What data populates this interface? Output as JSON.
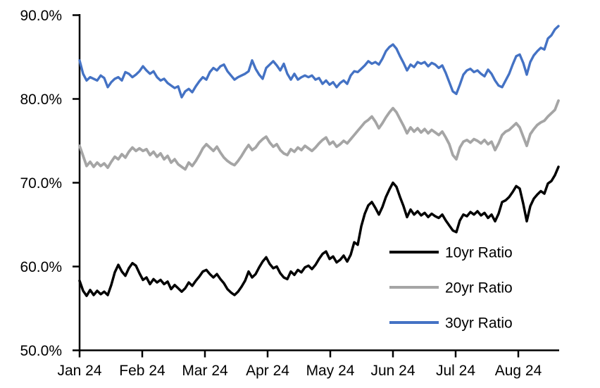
{
  "chart_data": {
    "type": "line",
    "title": "",
    "xlabel": "",
    "ylabel": "",
    "grid": false,
    "legend_position": "inside-lower-right",
    "axis_color": "#000000",
    "ylim": [
      50,
      90
    ],
    "y_tick_step": 10,
    "y_tick_labels": [
      "50.0%",
      "60.0%",
      "70.0%",
      "80.0%",
      "90.0%"
    ],
    "x_tick_labels": [
      "Jan 24",
      "Feb 24",
      "Mar 24",
      "Apr 24",
      "May 24",
      "Jun 24",
      "Jul 24",
      "Aug 24"
    ],
    "series": [
      {
        "name": "10yr Ratio",
        "color": "#000000",
        "values": [
          58.3,
          57.1,
          56.5,
          57.2,
          56.6,
          57.1,
          56.7,
          57.0,
          56.6,
          57.8,
          59.3,
          60.2,
          59.4,
          58.9,
          59.8,
          60.4,
          60.1,
          59.2,
          58.4,
          58.7,
          57.9,
          58.5,
          58.1,
          58.4,
          57.9,
          58.2,
          57.3,
          57.8,
          57.4,
          57.0,
          57.4,
          58.1,
          57.7,
          58.3,
          58.8,
          59.4,
          59.6,
          59.1,
          58.7,
          59.1,
          58.5,
          58.0,
          57.3,
          56.9,
          56.6,
          57.0,
          57.6,
          58.3,
          59.4,
          58.7,
          59.1,
          59.9,
          60.6,
          61.1,
          60.3,
          59.8,
          60.0,
          59.2,
          58.7,
          58.5,
          59.4,
          59.0,
          59.6,
          59.3,
          59.9,
          60.1,
          59.7,
          60.2,
          60.9,
          61.5,
          61.8,
          60.9,
          61.2,
          60.5,
          60.8,
          61.3,
          60.6,
          61.4,
          62.9,
          62.6,
          64.8,
          66.3,
          67.3,
          67.7,
          67.0,
          66.2,
          67.1,
          68.3,
          69.2,
          70.0,
          69.5,
          68.3,
          67.2,
          65.9,
          66.8,
          66.2,
          66.6,
          66.1,
          66.4,
          65.9,
          66.3,
          66.0,
          65.8,
          66.2,
          65.5,
          64.9,
          64.3,
          64.1,
          65.5,
          66.2,
          66.0,
          66.5,
          66.2,
          66.6,
          66.1,
          66.4,
          65.8,
          66.2,
          65.4,
          66.3,
          67.7,
          67.9,
          68.3,
          68.9,
          69.6,
          69.3,
          67.5,
          65.4,
          67.2,
          68.1,
          68.6,
          69.0,
          68.7,
          69.9,
          70.2,
          70.9,
          71.9
        ]
      },
      {
        "name": "20yr Ratio",
        "color": "#A5A5A5",
        "values": [
          74.4,
          73.2,
          72.0,
          72.5,
          71.9,
          72.4,
          72.0,
          72.3,
          71.8,
          72.5,
          73.1,
          72.8,
          73.4,
          73.0,
          73.7,
          74.2,
          73.8,
          74.1,
          73.8,
          74.0,
          73.3,
          73.7,
          73.1,
          73.5,
          72.8,
          73.2,
          72.4,
          72.8,
          72.2,
          71.9,
          71.6,
          72.4,
          72.0,
          72.6,
          73.3,
          74.1,
          74.6,
          74.2,
          73.8,
          74.3,
          73.6,
          73.0,
          72.6,
          72.3,
          72.1,
          72.6,
          73.2,
          73.9,
          74.5,
          73.9,
          74.2,
          74.8,
          75.2,
          75.5,
          74.8,
          74.3,
          74.6,
          73.9,
          73.5,
          73.3,
          74.0,
          73.7,
          74.2,
          73.9,
          74.4,
          74.1,
          73.8,
          74.2,
          74.7,
          75.1,
          75.4,
          74.6,
          74.9,
          74.3,
          74.6,
          75.0,
          74.7,
          75.2,
          75.7,
          76.2,
          76.7,
          77.2,
          77.5,
          77.9,
          77.3,
          76.5,
          77.1,
          77.8,
          78.4,
          78.9,
          78.4,
          77.6,
          76.8,
          75.9,
          76.6,
          76.1,
          76.5,
          76.0,
          76.4,
          75.9,
          76.3,
          76.0,
          75.7,
          76.1,
          75.4,
          74.6,
          73.3,
          72.8,
          74.2,
          74.9,
          75.1,
          74.8,
          75.2,
          75.0,
          74.7,
          75.1,
          74.6,
          74.9,
          73.9,
          74.7,
          75.7,
          76.1,
          76.3,
          76.7,
          77.1,
          76.6,
          75.5,
          74.4,
          75.8,
          76.4,
          76.9,
          77.2,
          77.4,
          77.9,
          78.3,
          78.7,
          79.8
        ]
      },
      {
        "name": "30yr Ratio",
        "color": "#4472C4",
        "values": [
          84.6,
          83.0,
          82.2,
          82.6,
          82.4,
          82.2,
          82.8,
          82.5,
          81.4,
          82.0,
          82.4,
          82.6,
          82.2,
          83.2,
          83.0,
          82.6,
          82.9,
          83.3,
          83.9,
          83.4,
          83.0,
          83.3,
          82.6,
          82.2,
          82.4,
          81.9,
          81.6,
          81.3,
          81.5,
          80.2,
          80.9,
          81.2,
          80.8,
          81.5,
          82.1,
          82.6,
          82.3,
          83.2,
          83.7,
          83.4,
          83.9,
          84.1,
          83.3,
          82.8,
          82.3,
          82.6,
          82.8,
          83.0,
          83.3,
          84.6,
          83.6,
          82.9,
          82.4,
          83.7,
          84.1,
          84.5,
          84.0,
          83.4,
          84.2,
          83.0,
          82.3,
          83.0,
          82.3,
          82.6,
          82.8,
          82.6,
          82.8,
          82.3,
          82.5,
          81.8,
          82.2,
          81.7,
          82.0,
          81.4,
          81.9,
          82.2,
          81.8,
          82.8,
          83.3,
          83.2,
          83.6,
          84.0,
          84.5,
          84.2,
          84.4,
          84.1,
          84.8,
          85.7,
          86.2,
          86.5,
          86.0,
          85.1,
          84.3,
          83.4,
          84.1,
          83.8,
          84.4,
          84.2,
          84.4,
          83.9,
          84.3,
          84.1,
          83.7,
          84.0,
          83.1,
          82.0,
          80.9,
          80.6,
          81.7,
          82.9,
          83.4,
          83.6,
          83.2,
          83.4,
          83.0,
          82.7,
          83.5,
          83.0,
          82.2,
          81.6,
          81.4,
          82.2,
          83.0,
          84.1,
          85.1,
          85.3,
          84.3,
          82.9,
          84.4,
          85.2,
          85.7,
          86.1,
          85.9,
          87.2,
          87.6,
          88.3,
          88.7
        ]
      }
    ]
  }
}
